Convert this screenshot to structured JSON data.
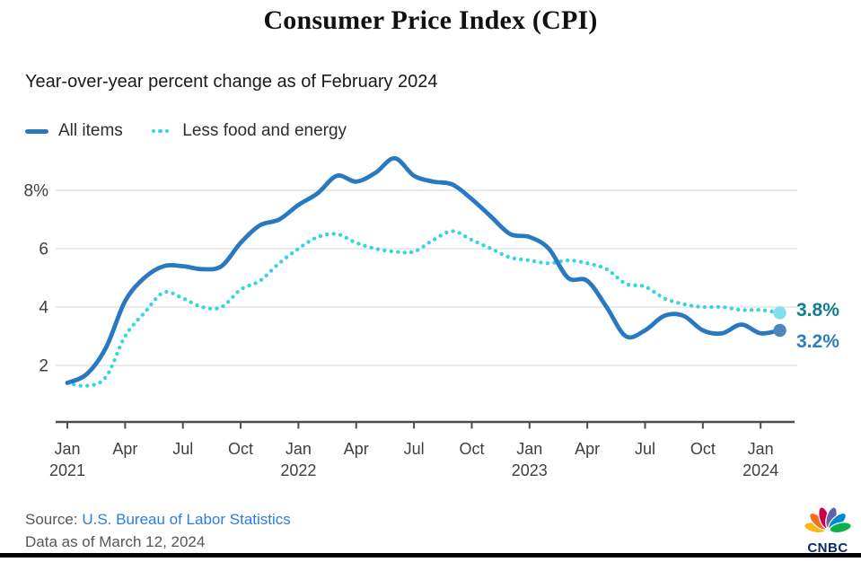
{
  "header": {
    "title": "Consumer Price Index (CPI)",
    "subtitle": "Year-over-year percent change as of February 2024"
  },
  "chart_data": {
    "type": "line",
    "title": "Consumer Price Index (CPI)",
    "subtitle": "Year-over-year percent change as of February 2024",
    "xlabel": "",
    "ylabel": "",
    "ylim": [
      0,
      9.6
    ],
    "grid": "horizontal",
    "legend_position": "top-left",
    "x": [
      "2021-01",
      "2021-02",
      "2021-03",
      "2021-04",
      "2021-05",
      "2021-06",
      "2021-07",
      "2021-08",
      "2021-09",
      "2021-10",
      "2021-11",
      "2021-12",
      "2022-01",
      "2022-02",
      "2022-03",
      "2022-04",
      "2022-05",
      "2022-06",
      "2022-07",
      "2022-08",
      "2022-09",
      "2022-10",
      "2022-11",
      "2022-12",
      "2023-01",
      "2023-02",
      "2023-03",
      "2023-04",
      "2023-05",
      "2023-06",
      "2023-07",
      "2023-08",
      "2023-09",
      "2023-10",
      "2023-11",
      "2023-12",
      "2024-01",
      "2024-02"
    ],
    "series": [
      {
        "name": "All items",
        "style": "solid",
        "color": "#2879c0",
        "dot_color": "#4d87bd",
        "end_label": "3.2%",
        "end_label_color": "#2b7ec3",
        "values": [
          1.4,
          1.7,
          2.6,
          4.2,
          5.0,
          5.4,
          5.4,
          5.3,
          5.4,
          6.2,
          6.8,
          7.0,
          7.5,
          7.9,
          8.5,
          8.3,
          8.6,
          9.1,
          8.5,
          8.3,
          8.2,
          7.7,
          7.1,
          6.5,
          6.4,
          6.0,
          5.0,
          4.9,
          4.0,
          3.0,
          3.2,
          3.7,
          3.7,
          3.2,
          3.1,
          3.4,
          3.1,
          3.2
        ]
      },
      {
        "name": "Less food and energy",
        "style": "dotted",
        "color": "#38d3e5",
        "dot_color": "#80e0ec",
        "end_label": "3.8%",
        "end_label_color": "#0e7f8d",
        "values": [
          1.4,
          1.3,
          1.6,
          3.0,
          3.8,
          4.5,
          4.3,
          4.0,
          4.0,
          4.6,
          4.9,
          5.5,
          6.0,
          6.4,
          6.5,
          6.2,
          6.0,
          5.9,
          5.9,
          6.3,
          6.6,
          6.3,
          6.0,
          5.7,
          5.6,
          5.5,
          5.6,
          5.5,
          5.3,
          4.8,
          4.7,
          4.3,
          4.1,
          4.0,
          4.0,
          3.9,
          3.9,
          3.8
        ]
      }
    ],
    "y_ticks": [
      {
        "v": 8,
        "label": "8%"
      },
      {
        "v": 6,
        "label": "6"
      },
      {
        "v": 4,
        "label": "4"
      },
      {
        "v": 2,
        "label": "2"
      }
    ],
    "x_ticks": [
      {
        "i": 0,
        "month": "Jan",
        "year": "2021"
      },
      {
        "i": 3,
        "month": "Apr"
      },
      {
        "i": 6,
        "month": "Jul"
      },
      {
        "i": 9,
        "month": "Oct"
      },
      {
        "i": 12,
        "month": "Jan",
        "year": "2022"
      },
      {
        "i": 15,
        "month": "Apr"
      },
      {
        "i": 18,
        "month": "Jul"
      },
      {
        "i": 21,
        "month": "Oct"
      },
      {
        "i": 24,
        "month": "Jan",
        "year": "2023"
      },
      {
        "i": 27,
        "month": "Apr"
      },
      {
        "i": 30,
        "month": "Jul"
      },
      {
        "i": 33,
        "month": "Oct"
      },
      {
        "i": 36,
        "month": "Jan",
        "year": "2024"
      }
    ]
  },
  "footer": {
    "source_prefix": "Source:",
    "source_link": "U.S. Bureau of Labor Statistics",
    "data_note": "Data as of March 12, 2024",
    "brand": "CNBC"
  },
  "colors": {
    "all_items_line": "#2879c0",
    "core_line": "#38d3e5",
    "grid": "#e4e4e4",
    "axis": "#4d4d4d",
    "tick_text": "#3f3f3f",
    "link_blue": "#2a7de2",
    "brand_navy": "#0c2a6b",
    "peacock": [
      "#FCB711",
      "#F37021",
      "#CC004C",
      "#6460AA",
      "#0089D0",
      "#0DB14B"
    ]
  }
}
